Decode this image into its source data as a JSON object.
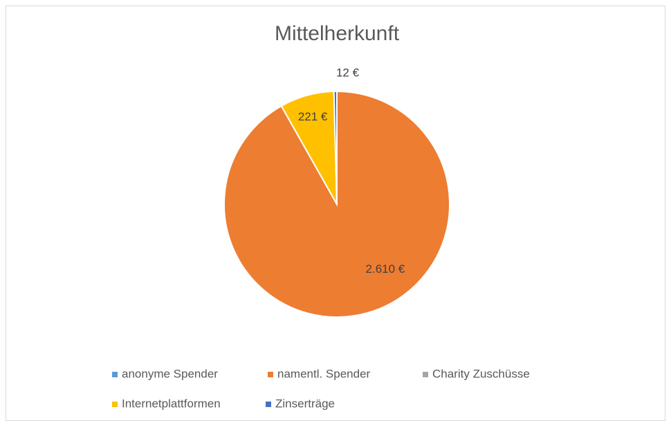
{
  "chart_data": {
    "type": "pie",
    "title": "Mittelherkunft",
    "categories": [
      "anonyme Spender",
      "namentl. Spender",
      "Charity Zuschüsse",
      "Internetplattformen",
      "Zinserträge"
    ],
    "values": [
      0,
      2610,
      0,
      221,
      12
    ],
    "value_labels": [
      null,
      "2.610 €",
      null,
      "221 €",
      "12 €"
    ],
    "colors": [
      "#5b9bd5",
      "#ed7d31",
      "#a5a5a5",
      "#ffc000",
      "#4472c4"
    ],
    "legend": "bottom"
  }
}
